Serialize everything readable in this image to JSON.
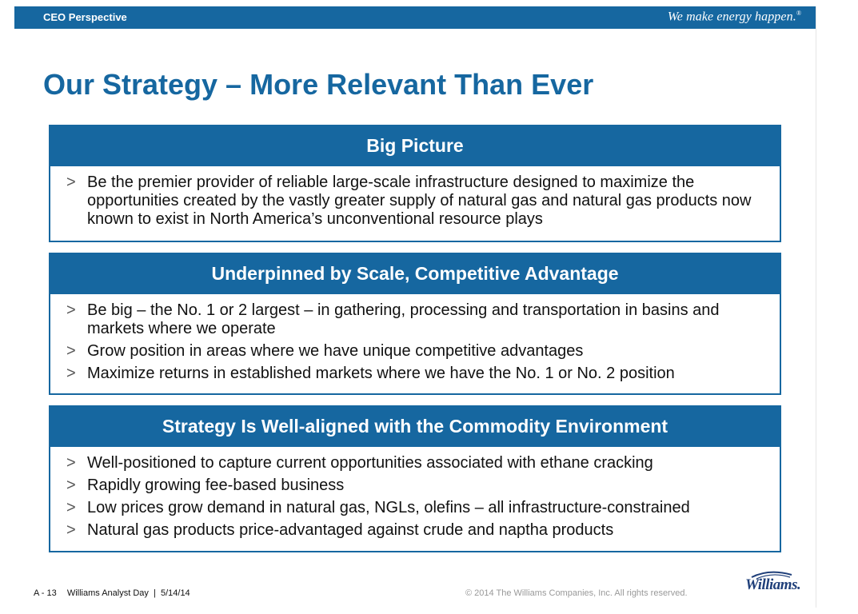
{
  "header": {
    "section_label": "CEO Perspective",
    "tagline": "We make energy happen.",
    "tagline_mark": "®"
  },
  "title": "Our Strategy – More Relevant Than Ever",
  "boxes": [
    {
      "heading": "Big Picture",
      "items": [
        "Be the premier provider of reliable large-scale infrastructure designed to maximize the opportunities created by the vastly greater supply of natural gas and natural gas products now known to exist in North America’s unconventional resource plays"
      ]
    },
    {
      "heading": "Underpinned by Scale, Competitive Advantage",
      "items": [
        "Be big – the No. 1 or 2 largest – in gathering, processing and transportation in basins and markets where we operate",
        "Grow position in areas where we have unique competitive advantages",
        "Maximize returns in established markets where we have the No. 1 or No. 2 position"
      ]
    },
    {
      "heading": "Strategy Is Well-aligned with the Commodity Environment",
      "items": [
        "Well-positioned to capture current opportunities associated with ethane cracking",
        "Rapidly growing fee-based business",
        "Low prices grow demand in natural gas, NGLs, olefins – all infrastructure-constrained",
        "Natural gas products price-advantaged against crude and naptha products"
      ]
    }
  ],
  "bullet_glyph": ">",
  "footer": {
    "page": "A - 13",
    "event": "Williams Analyst Day  |  5/14/14",
    "copyright": "© 2014 The Williams Companies, Inc. All rights reserved.",
    "logo": "Williams."
  },
  "colors": {
    "brand_blue": "#1667a0",
    "logo_navy": "#1f3f7a"
  }
}
